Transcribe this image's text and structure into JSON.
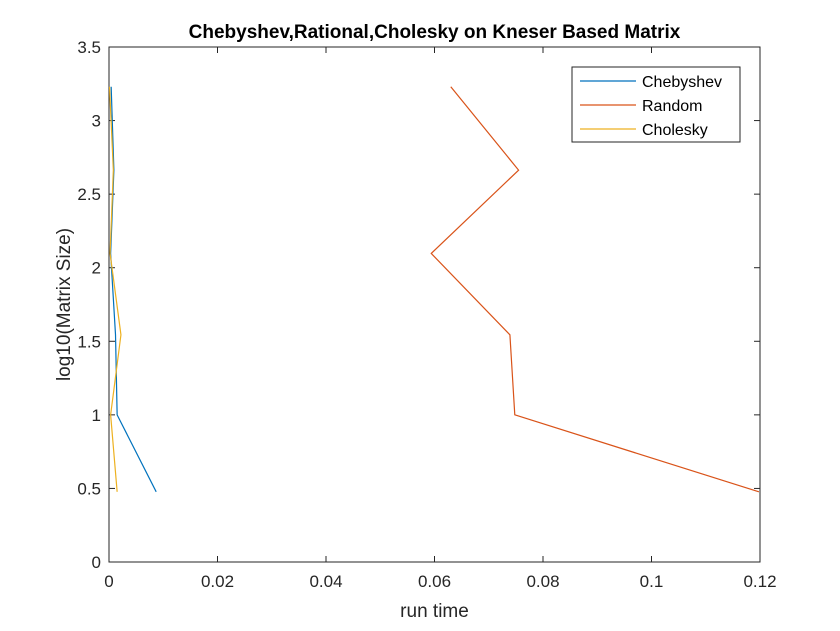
{
  "chart_data": {
    "type": "line",
    "title": "Chebyshev,Rational,Cholesky on Kneser Based Matrix",
    "xlabel": "run time",
    "ylabel": "log10(Matrix Size)",
    "xlim": [
      0,
      0.12
    ],
    "ylim": [
      0,
      3.5
    ],
    "xticks": [
      0,
      0.02,
      0.04,
      0.06,
      0.08,
      0.1,
      0.12
    ],
    "xtick_labels": [
      "0",
      "0.02",
      "0.04",
      "0.06",
      "0.08",
      "0.1",
      "0.12"
    ],
    "yticks": [
      0,
      0.5,
      1,
      1.5,
      2,
      2.5,
      3,
      3.5
    ],
    "ytick_labels": [
      "0",
      "0.5",
      "1",
      "1.5",
      "2",
      "2.5",
      "3",
      "3.5"
    ],
    "grid": false,
    "legend_position": "top-right",
    "series": [
      {
        "name": "Chebyshev",
        "color": "#0072BD",
        "points": [
          [
            0.0087,
            0.477
          ],
          [
            0.0015,
            1.0
          ],
          [
            0.0012,
            1.544
          ],
          [
            0.0003,
            2.097
          ],
          [
            0.0009,
            2.663
          ],
          [
            0.0004,
            3.23
          ]
        ]
      },
      {
        "name": "Random",
        "color": "#D95319",
        "points": [
          [
            0.1198,
            0.477
          ],
          [
            0.0748,
            1.0
          ],
          [
            0.0739,
            1.544
          ],
          [
            0.0594,
            2.097
          ],
          [
            0.0755,
            2.663
          ],
          [
            0.063,
            3.23
          ]
        ]
      },
      {
        "name": "Cholesky",
        "color": "#EDB120",
        "points": [
          [
            0.0015,
            0.477
          ],
          [
            0.0003,
            1.0
          ],
          [
            0.0022,
            1.544
          ],
          [
            0.0002,
            2.097
          ],
          [
            0.0008,
            2.663
          ],
          [
            0.0001,
            3.23
          ]
        ]
      }
    ]
  }
}
